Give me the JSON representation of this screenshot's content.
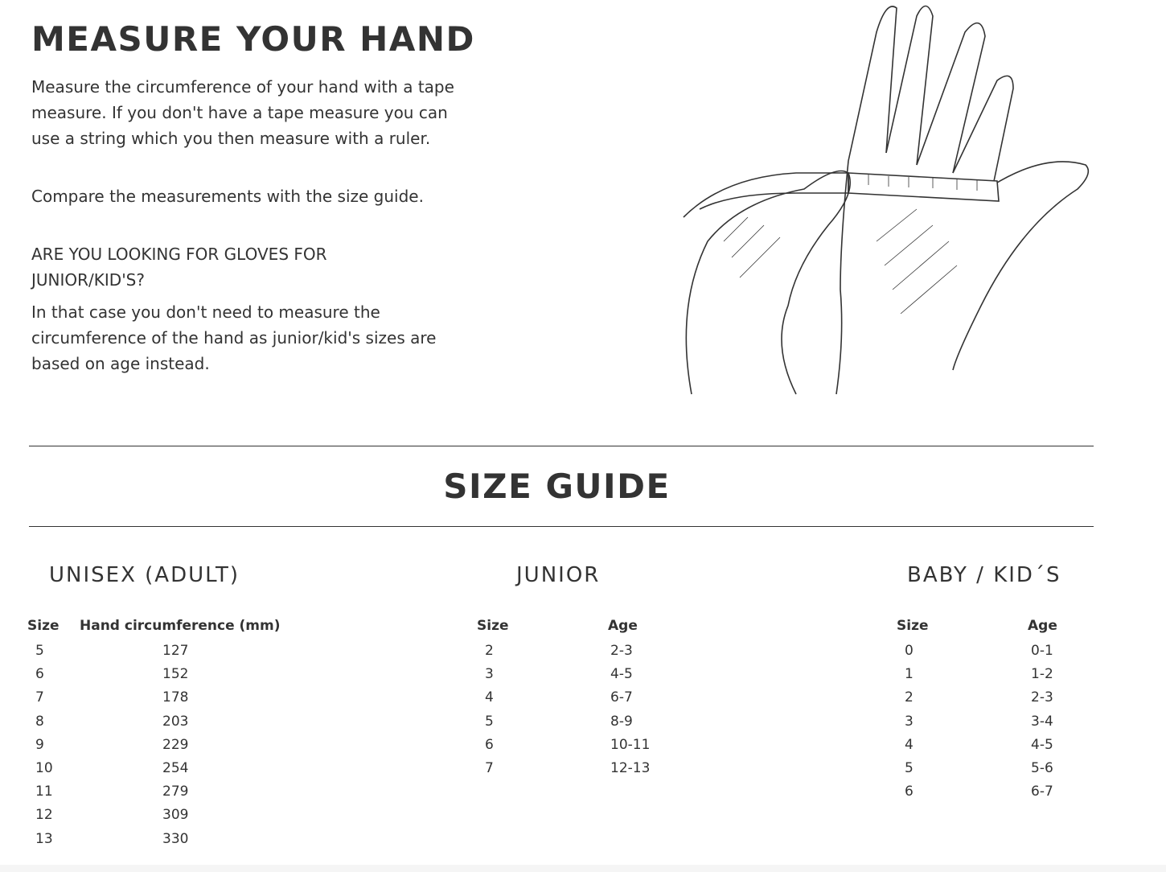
{
  "measure": {
    "title": "MEASURE YOUR HAND",
    "paragraph1": "Measure the circumference of your hand with a tape measure. If you don't have a tape measure you can use a string which you then measure with a ruler.",
    "paragraph2": "Compare the measurements with the size guide.",
    "junior_heading": "ARE YOU LOOKING FOR GLOVES FOR JUNIOR/KID'S?",
    "junior_text": "In that case you don't need to measure the circumference of the hand as junior/kid's sizes are based on age instead."
  },
  "size_guide": {
    "title": "SIZE GUIDE",
    "unisex": {
      "heading": "UNISEX (ADULT)",
      "headers": [
        "Size",
        "Hand circumference (mm)"
      ],
      "sizes": [
        "5",
        "6",
        "7",
        "8",
        "9",
        "10",
        "11",
        "12",
        "13"
      ],
      "circumference": [
        "127",
        "152",
        "178",
        "203",
        "229",
        "254",
        "279",
        "309",
        "330"
      ]
    },
    "junior": {
      "heading": "JUNIOR",
      "headers": [
        "Size",
        "Age"
      ],
      "sizes": [
        "2",
        "3",
        "4",
        "5",
        "6",
        "7"
      ],
      "ages": [
        "2-3",
        "4-5",
        "6-7",
        "8-9",
        "10-11",
        "12-13"
      ]
    },
    "baby": {
      "heading": "BABY / KID´S",
      "headers": [
        "Size",
        "Age"
      ],
      "sizes": [
        "0",
        "1",
        "2",
        "3",
        "4",
        "5",
        "6"
      ],
      "ages": [
        "0-1",
        "1-2",
        "2-3",
        "3-4",
        "4-5",
        "5-6",
        "6-7"
      ]
    }
  }
}
